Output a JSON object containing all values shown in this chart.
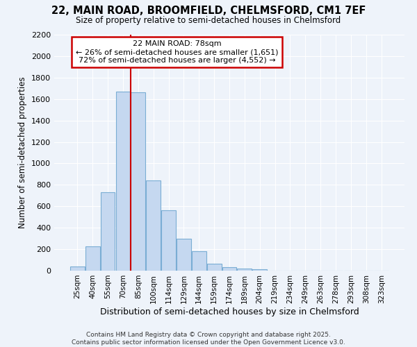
{
  "title1": "22, MAIN ROAD, BROOMFIELD, CHELMSFORD, CM1 7EF",
  "title2": "Size of property relative to semi-detached houses in Chelmsford",
  "xlabel": "Distribution of semi-detached houses by size in Chelmsford",
  "ylabel": "Number of semi-detached properties",
  "categories": [
    "25sqm",
    "40sqm",
    "55sqm",
    "70sqm",
    "85sqm",
    "100sqm",
    "114sqm",
    "129sqm",
    "144sqm",
    "159sqm",
    "174sqm",
    "189sqm",
    "204sqm",
    "219sqm",
    "234sqm",
    "249sqm",
    "263sqm",
    "278sqm",
    "293sqm",
    "308sqm",
    "323sqm"
  ],
  "values": [
    40,
    225,
    730,
    1670,
    1660,
    840,
    560,
    300,
    180,
    65,
    35,
    20,
    13,
    0,
    0,
    0,
    0,
    0,
    0,
    0,
    0
  ],
  "bar_color": "#c5d8f0",
  "bar_edge_color": "#7aadd4",
  "bg_color": "#eef3fa",
  "grid_color": "#ffffff",
  "red_line_x": 3.5,
  "annotation_title": "22 MAIN ROAD: 78sqm",
  "annotation_line1": "← 26% of semi-detached houses are smaller (1,651)",
  "annotation_line2": "72% of semi-detached houses are larger (4,552) →",
  "annotation_box_color": "#ffffff",
  "annotation_box_edge": "#cc0000",
  "red_line_color": "#cc0000",
  "ylim": [
    0,
    2200
  ],
  "yticks": [
    0,
    200,
    400,
    600,
    800,
    1000,
    1200,
    1400,
    1600,
    1800,
    2000,
    2200
  ],
  "footer1": "Contains HM Land Registry data © Crown copyright and database right 2025.",
  "footer2": "Contains public sector information licensed under the Open Government Licence v3.0."
}
